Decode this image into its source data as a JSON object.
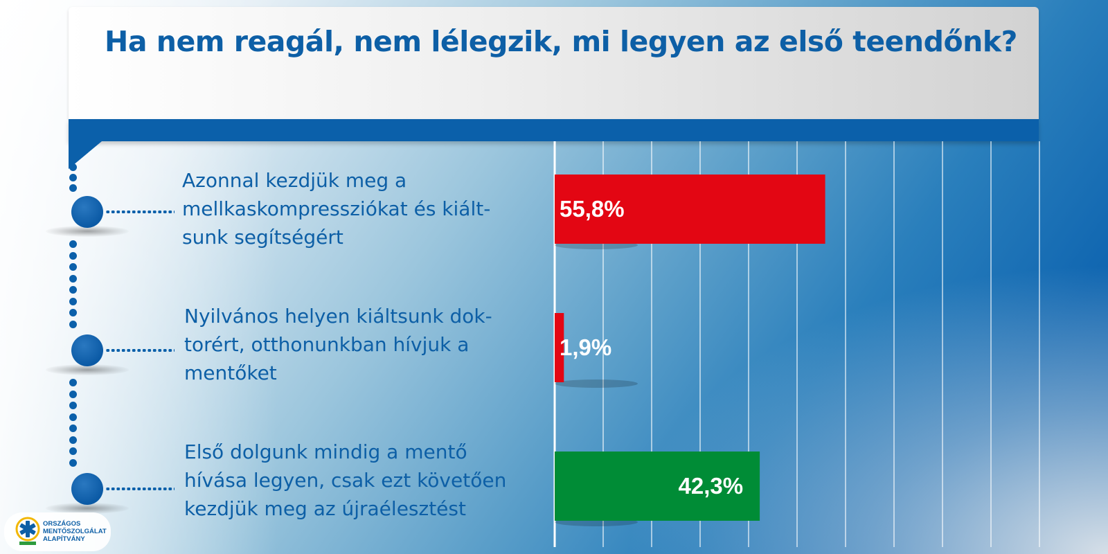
{
  "title": "Ha nem reagál, nem lélegzik, mi legyen az első teendőnk?",
  "colors": {
    "blue": "#0b60aa",
    "red": "#e30613",
    "green": "#008c36"
  },
  "logo": {
    "icon": "star-of-life-icon",
    "text": "ORSZÁGOS\nMENTŐSZOLGÁLAT\nALAPÍTVÁNY"
  },
  "chart_data": {
    "type": "bar",
    "orientation": "horizontal",
    "categories": [
      "Azonnal kezdjük meg a\nmellkaskompressziókat és kiált-\nsunk segítségért",
      "Nyilvános helyen kiáltsunk dok-\ntorért, otthonunkban hívjuk a\nmentőket",
      "Első dolgunk mindig a mentő\nhívása legyen, csak ezt követően\nkezdjük meg az újraélesztést"
    ],
    "values": [
      55.8,
      1.9,
      42.3
    ],
    "value_labels": [
      "55,8%",
      "1,9%",
      "42,3%"
    ],
    "bar_colors": [
      "#e30613",
      "#e30613",
      "#008c36"
    ],
    "xlim": [
      0,
      100
    ],
    "grid": true,
    "title": "Ha nem reagál, nem lélegzik, mi legyen az első teendőnk?"
  }
}
